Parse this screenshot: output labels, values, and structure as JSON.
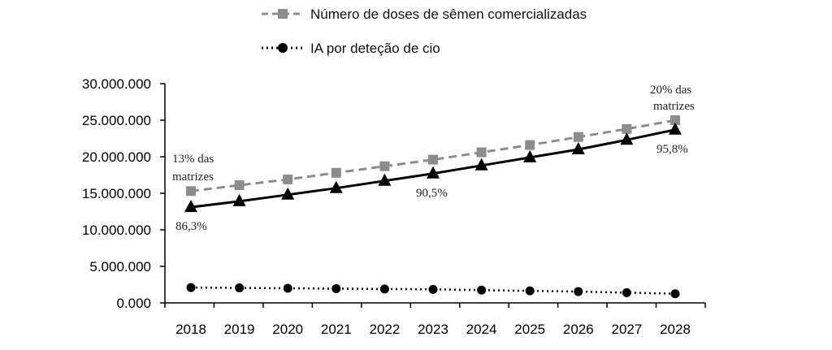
{
  "chart_data": {
    "type": "line",
    "categories": [
      "2018",
      "2019",
      "2020",
      "2021",
      "2022",
      "2023",
      "2024",
      "2025",
      "2026",
      "2027",
      "2028"
    ],
    "series": [
      {
        "name": "Número de doses de sêmen comercializadas",
        "values": [
          15300000,
          16100000,
          16900000,
          17800000,
          18700000,
          19600000,
          20600000,
          21600000,
          22700000,
          23800000,
          25000000
        ],
        "color": "#8c8c8c",
        "line": "dashed",
        "marker": "square"
      },
      {
        "name": "",
        "values": [
          13100000,
          13900000,
          14800000,
          15700000,
          16700000,
          17700000,
          18800000,
          19900000,
          21000000,
          22300000,
          23700000
        ],
        "color": "#000000",
        "line": "solid",
        "marker": "triangle"
      },
      {
        "name": "IA por deteção de cio",
        "values": [
          2100000,
          2050000,
          2000000,
          1950000,
          1900000,
          1850000,
          1750000,
          1650000,
          1550000,
          1400000,
          1250000
        ],
        "color": "#000000",
        "line": "dotted",
        "marker": "circle"
      }
    ],
    "ylim": [
      0,
      30000000
    ],
    "yticks": [
      0,
      5000000,
      10000000,
      15000000,
      20000000,
      25000000,
      30000000
    ],
    "ytick_labels": [
      "0.000",
      "5.000.000",
      "10.000.000",
      "15.000.000",
      "20.000.000",
      "25.000.000",
      "30.000.000"
    ],
    "legend_position": "top",
    "grid": false,
    "annotations": {
      "left_top": [
        "13% das",
        "matrizes"
      ],
      "left_bottom": "86,3%",
      "middle": "90,5%",
      "right_top": [
        "20% das",
        "matrizes"
      ],
      "right_bottom": "95,8%"
    }
  }
}
